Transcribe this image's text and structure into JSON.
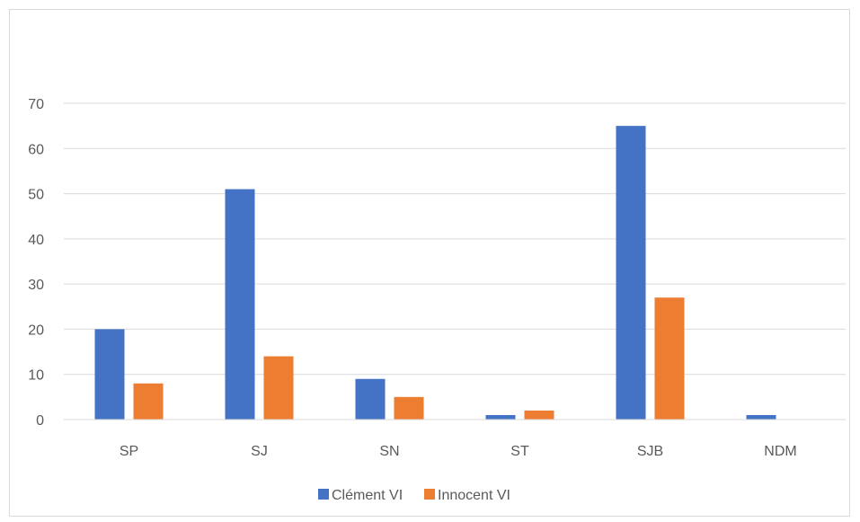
{
  "chart_data": {
    "type": "bar",
    "categories": [
      "SP",
      "SJ",
      "SN",
      "ST",
      "SJB",
      "NDM"
    ],
    "series": [
      {
        "name": "Clément VI",
        "values": [
          20,
          51,
          9,
          1,
          65,
          1
        ],
        "color": "#4472c4"
      },
      {
        "name": "Innocent VI",
        "values": [
          8,
          14,
          5,
          2,
          27,
          0
        ],
        "color": "#ed7d31"
      }
    ],
    "title": "",
    "xlabel": "",
    "ylabel": "",
    "ylim": [
      0,
      70
    ],
    "yticks": [
      0,
      10,
      20,
      30,
      40,
      50,
      60,
      70
    ],
    "grid": true,
    "legend_position": "bottom"
  }
}
